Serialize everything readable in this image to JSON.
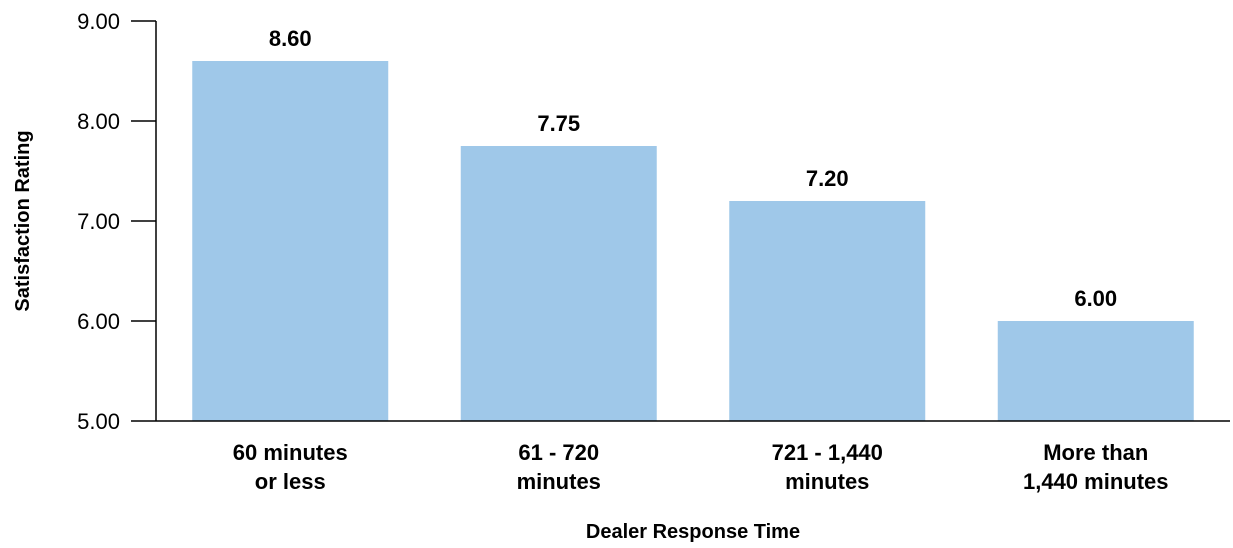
{
  "chart_data": {
    "type": "bar",
    "categories": [
      [
        "60 minutes",
        "or less"
      ],
      [
        "61 - 720",
        "minutes"
      ],
      [
        "721 - 1,440",
        "minutes"
      ],
      [
        "More than",
        "1,440 minutes"
      ]
    ],
    "values": [
      8.6,
      7.75,
      7.2,
      6.0
    ],
    "value_labels": [
      "8.60",
      "7.75",
      "7.20",
      "6.00"
    ],
    "xlabel": "Dealer Response Time",
    "ylabel": "Satisfaction Rating",
    "ylim": [
      5,
      9
    ],
    "yticks": [
      5,
      6,
      7,
      8,
      9
    ],
    "ytick_labels": [
      "5.00",
      "6.00",
      "7.00",
      "8.00",
      "9.00"
    ],
    "grid": false,
    "bar_color": "#9fc8e9",
    "axis_color": "#000000"
  }
}
